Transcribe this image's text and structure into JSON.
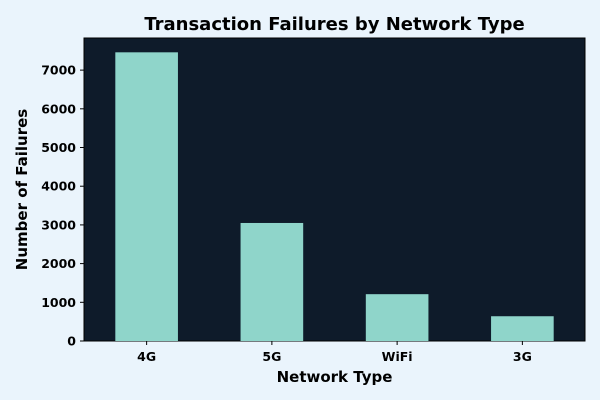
{
  "chart_data": {
    "type": "bar",
    "title": "Transaction Failures by Network Type",
    "xlabel": "Network Type",
    "ylabel": "Number of Failures",
    "categories": [
      "4G",
      "5G",
      "WiFi",
      "3G"
    ],
    "values": [
      7460,
      3050,
      1210,
      640
    ],
    "ylim": [
      0,
      7830
    ],
    "yticks": [
      0,
      1000,
      2000,
      3000,
      4000,
      5000,
      6000,
      7000
    ],
    "grid": false,
    "legend": "none",
    "colors": {
      "background": "#eaf4fc",
      "plot_background": "#0e1b2a",
      "bar": "#8fd5ca",
      "text": "#000000"
    }
  }
}
